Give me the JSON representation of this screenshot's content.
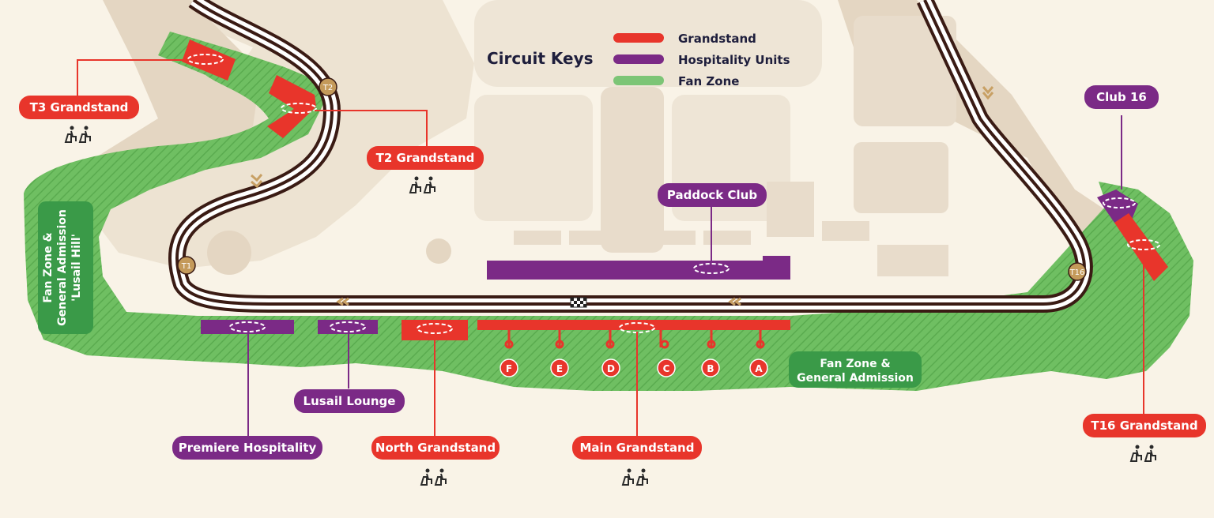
{
  "legend": {
    "title": "Circuit Keys",
    "items": [
      {
        "label": "Grandstand",
        "color": "#e8352b"
      },
      {
        "label": "Hospitality Units",
        "color": "#7b2a86"
      },
      {
        "label": "Fan Zone",
        "color": "#7cc576"
      }
    ]
  },
  "colors": {
    "grandstand": "#e8352b",
    "hospitality": "#7b2a86",
    "fan_zone": "#6fbf62",
    "fan_zone_hatch": "#5aab4f",
    "fan_zone_label": "#3a9a48",
    "track": "#3a1b14",
    "background": "#f9f3e7",
    "buildings": "#ece0cd",
    "terrain": "#e2d4c1"
  },
  "labels": {
    "t3_grandstand": "T3 Grandstand",
    "t2_grandstand": "T2 Grandstand",
    "club_16": "Club 16",
    "paddock_club": "Paddock Club",
    "lusail_lounge": "Lusail Lounge",
    "premiere_hospitality": "Premiere Hospitality",
    "north_grandstand": "North Grandstand",
    "main_grandstand": "Main Grandstand",
    "t16_grandstand": "T16 Grandstand"
  },
  "fan_zones": {
    "lusail_hill": [
      "Fan Zone &",
      "General Admission",
      "'Lusail Hill'"
    ],
    "main": [
      "Fan Zone &",
      "General Admission"
    ]
  },
  "turns": [
    "T1",
    "T2",
    "T16"
  ],
  "gates": [
    "F",
    "E",
    "D",
    "C",
    "B",
    "A"
  ],
  "icons": {
    "seat": "grandstand-seat-icon",
    "start_finish": "checkered-flag-icon",
    "direction": "chevron-arrow-icon"
  }
}
